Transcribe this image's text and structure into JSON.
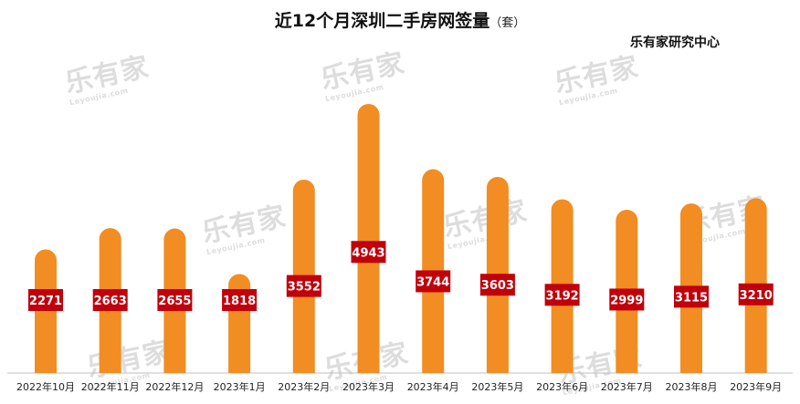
{
  "title": "近12个月深圳二手房网签量",
  "title_unit": "（套）",
  "source": "乐有家研究中心",
  "watermark": "乐有家",
  "watermark_sub": "Leyoujia.com",
  "colors": {
    "bar": "#f18d23",
    "label_bg": "#c0000b",
    "label_text": "#ffffff",
    "axis": "#bfbfbf"
  },
  "chart_data": {
    "type": "bar",
    "title": "近12个月深圳二手房网签量（套）",
    "categories": [
      "2022年10月",
      "2022年11月",
      "2022年12月",
      "2023年1月",
      "2023年2月",
      "2023年3月",
      "2023年4月",
      "2023年5月",
      "2023年6月",
      "2023年7月",
      "2023年8月",
      "2023年9月"
    ],
    "values": [
      2271,
      2663,
      2655,
      1818,
      3552,
      4943,
      3744,
      3603,
      3192,
      2999,
      3115,
      3210
    ],
    "data_labels": [
      "2271",
      "2663",
      "2655",
      "1818",
      "3552",
      "4943",
      "3744",
      "3603",
      "3192",
      "2999",
      "3115",
      "3210"
    ],
    "ylim": [
      0,
      5200
    ],
    "grid": false,
    "legend": "none"
  }
}
